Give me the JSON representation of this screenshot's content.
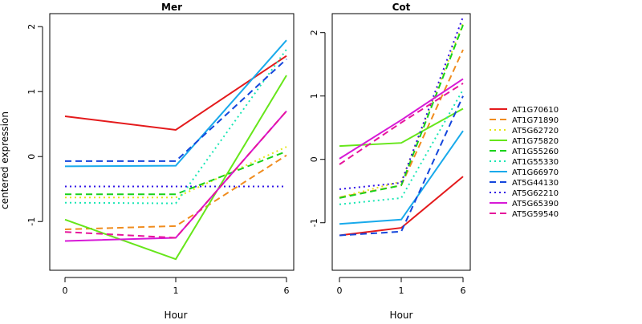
{
  "chart_data": [
    {
      "type": "line",
      "title": "Mer",
      "xlabel": "Hour",
      "ylabel": "centered expression",
      "categories": [
        "0",
        "1",
        "6"
      ],
      "ylim": [
        -1.75,
        2.2
      ],
      "yticks": [
        -1,
        0,
        1,
        2
      ],
      "grid": false,
      "series": [
        {
          "name": "AT1G70610",
          "values": [
            0.62,
            0.41,
            1.55
          ]
        },
        {
          "name": "AT1G71890",
          "values": [
            -1.12,
            -1.07,
            0.02
          ]
        },
        {
          "name": "AT5G62720",
          "values": [
            -0.63,
            -0.63,
            0.15
          ]
        },
        {
          "name": "AT1G75820",
          "values": [
            -0.97,
            -1.58,
            1.25
          ]
        },
        {
          "name": "AT1G55260",
          "values": [
            -0.58,
            -0.58,
            0.08
          ]
        },
        {
          "name": "AT1G55330",
          "values": [
            -0.71,
            -0.72,
            1.65
          ]
        },
        {
          "name": "AT1G66970",
          "values": [
            -0.15,
            -0.14,
            1.79
          ]
        },
        {
          "name": "AT5G44130",
          "values": [
            -0.07,
            -0.07,
            1.5
          ]
        },
        {
          "name": "AT5G62210",
          "values": [
            -0.46,
            -0.46,
            -0.46
          ]
        },
        {
          "name": "AT5G65390",
          "values": [
            -1.3,
            -1.25,
            0.7
          ]
        },
        {
          "name": "AT5G59540",
          "values": [
            -1.16,
            -1.25,
            0.7
          ]
        }
      ]
    },
    {
      "type": "line",
      "title": "Cot",
      "xlabel": "Hour",
      "ylabel": "",
      "categories": [
        "0",
        "1",
        "6"
      ],
      "ylim": [
        -1.75,
        2.3
      ],
      "yticks": [
        -1,
        0,
        1,
        2
      ],
      "grid": false,
      "series": [
        {
          "name": "AT1G70610",
          "values": [
            -1.2,
            -1.08,
            -0.27
          ]
        },
        {
          "name": "AT1G71890",
          "values": [
            -0.6,
            -0.41,
            1.73
          ]
        },
        {
          "name": "AT5G62720",
          "values": [
            -0.6,
            -0.35,
            2.15
          ]
        },
        {
          "name": "AT1G75820",
          "values": [
            0.21,
            0.26,
            0.8
          ]
        },
        {
          "name": "AT1G55260",
          "values": [
            -0.61,
            -0.41,
            2.12
          ]
        },
        {
          "name": "AT1G55330",
          "values": [
            -0.71,
            -0.61,
            1.1
          ]
        },
        {
          "name": "AT1G66970",
          "values": [
            -1.02,
            -0.95,
            0.45
          ]
        },
        {
          "name": "AT5G44130",
          "values": [
            -1.2,
            -1.14,
            1.0
          ]
        },
        {
          "name": "AT5G62210",
          "values": [
            -0.47,
            -0.37,
            2.25
          ]
        },
        {
          "name": "AT5G65390",
          "values": [
            0.01,
            0.62,
            1.27
          ]
        },
        {
          "name": "AT5G59540",
          "values": [
            -0.08,
            0.58,
            1.2
          ]
        }
      ]
    }
  ],
  "legend": {
    "placement": "right",
    "items": [
      {
        "name": "AT1G70610",
        "color": "#e41a1c",
        "dash": "solid"
      },
      {
        "name": "AT1G71890",
        "color": "#f08c1e",
        "dash": "dashed"
      },
      {
        "name": "AT5G62720",
        "color": "#e6e619",
        "dash": "dotted"
      },
      {
        "name": "AT1G75820",
        "color": "#66e61a",
        "dash": "solid"
      },
      {
        "name": "AT1G55260",
        "color": "#19d219",
        "dash": "dashed"
      },
      {
        "name": "AT1G55330",
        "color": "#19e6b4",
        "dash": "dotted"
      },
      {
        "name": "AT1G66970",
        "color": "#19aaeb",
        "dash": "solid"
      },
      {
        "name": "AT5G44130",
        "color": "#1446dc",
        "dash": "dashed"
      },
      {
        "name": "AT5G62210",
        "color": "#3214e6",
        "dash": "dotted"
      },
      {
        "name": "AT5G65390",
        "color": "#d719d7",
        "dash": "solid"
      },
      {
        "name": "AT5G59540",
        "color": "#e6149b",
        "dash": "dashed"
      }
    ]
  }
}
